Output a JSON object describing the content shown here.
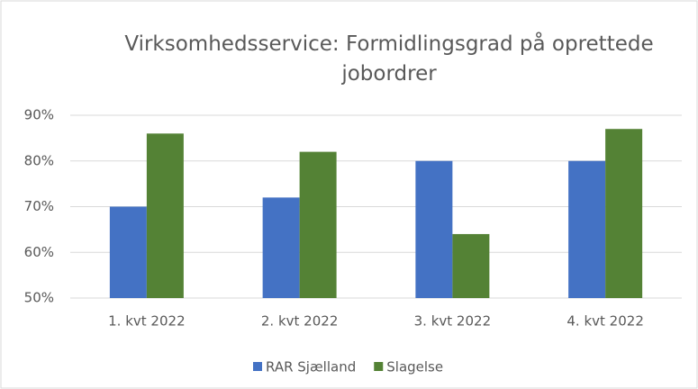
{
  "chart_data": {
    "type": "bar",
    "title": "Virksomhedsservice: Formidlingsgrad på oprettede jobordrer",
    "categories": [
      "1. kvt 2022",
      "2. kvt 2022",
      "3. kvt 2022",
      "4. kvt 2022"
    ],
    "series": [
      {
        "name": "RAR Sjælland",
        "color": "#4472c4",
        "values": [
          70,
          72,
          80,
          80
        ]
      },
      {
        "name": "Slagelse",
        "color": "#548235",
        "values": [
          86,
          82,
          64,
          87
        ]
      }
    ],
    "ylim": [
      50,
      90
    ],
    "yticks": [
      {
        "value": 50,
        "label": "50%"
      },
      {
        "value": 60,
        "label": "60%"
      },
      {
        "value": 70,
        "label": "70%"
      },
      {
        "value": 80,
        "label": "80%"
      },
      {
        "value": 90,
        "label": "90%"
      }
    ],
    "grid": true,
    "legend": "bottom"
  }
}
